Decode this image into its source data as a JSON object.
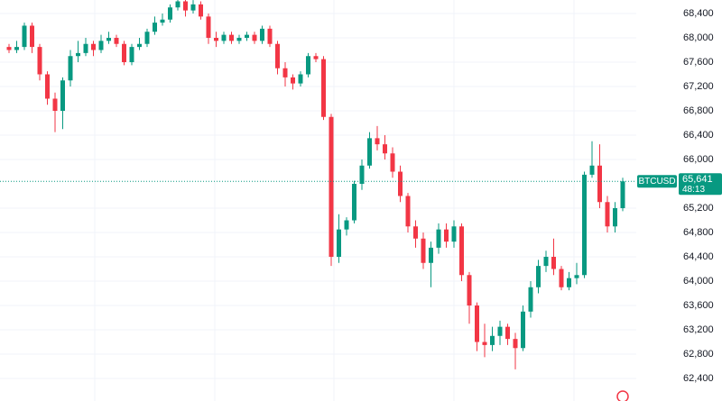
{
  "chart_data": {
    "type": "candlestick",
    "symbol": "BTCUSD",
    "last_price": {
      "value": 65641,
      "label": "65,641"
    },
    "countdown": "48:13",
    "up_color": "#089981",
    "down_color": "#f23645",
    "grid": true,
    "ylim": [
      62030,
      68622
    ],
    "yticks": [
      {
        "value": 68400,
        "label": "68,400"
      },
      {
        "value": 68000,
        "label": "68,000"
      },
      {
        "value": 67600,
        "label": "67,600"
      },
      {
        "value": 67200,
        "label": "67,200"
      },
      {
        "value": 66800,
        "label": "66,800"
      },
      {
        "value": 66400,
        "label": "66,400"
      },
      {
        "value": 66000,
        "label": "66,000"
      },
      {
        "value": 65200,
        "label": "65,200"
      },
      {
        "value": 64800,
        "label": "64,800"
      },
      {
        "value": 64400,
        "label": "64,400"
      },
      {
        "value": 64000,
        "label": "64,000"
      },
      {
        "value": 63600,
        "label": "63,600"
      },
      {
        "value": 63200,
        "label": "63,200"
      },
      {
        "value": 62800,
        "label": "62,800"
      },
      {
        "value": 62400,
        "label": "62,400"
      }
    ],
    "open": [
      67850,
      67800,
      67850,
      68200,
      67850,
      67400,
      67000,
      66800,
      67300,
      67700,
      67750,
      67900,
      67800,
      67950,
      68000,
      67900,
      67600,
      67850,
      67900,
      68100,
      68250,
      68300,
      68500,
      68600,
      68450,
      68550,
      68350,
      68000,
      67950,
      68050,
      67950,
      68000,
      68050,
      67950,
      68150,
      67900,
      67500,
      67350,
      67250,
      67400,
      67700,
      67650,
      66700,
      64400,
      64850,
      65000,
      65600,
      65900,
      66350,
      66250,
      66100,
      65800,
      65400,
      64900,
      64700,
      64300,
      64550,
      64850,
      64650,
      64900,
      64100,
      63600,
      63000,
      62950,
      63100,
      63250,
      63050,
      62900,
      63500,
      63900,
      64250,
      64400,
      64200,
      63900,
      64050,
      64100,
      65750,
      65900,
      65300,
      64900,
      65200
    ],
    "high": [
      67900,
      67950,
      68250,
      68250,
      67900,
      67450,
      67100,
      67350,
      67800,
      67950,
      68000,
      67950,
      68050,
      68100,
      68050,
      67950,
      67900,
      68000,
      68150,
      68350,
      68400,
      68550,
      68650,
      68650,
      68620,
      68600,
      68400,
      68100,
      68100,
      68100,
      68050,
      68100,
      68100,
      68200,
      68200,
      67950,
      67600,
      67400,
      67450,
      67750,
      67750,
      67700,
      66750,
      65100,
      65050,
      65650,
      66000,
      66450,
      66550,
      66400,
      66200,
      65900,
      65450,
      65000,
      64800,
      64650,
      64950,
      64950,
      65000,
      64950,
      64150,
      63650,
      63300,
      63250,
      63350,
      63300,
      63150,
      63600,
      64000,
      64350,
      64500,
      64700,
      64250,
      64150,
      64300,
      65800,
      66300,
      66250,
      65400,
      65300,
      65700
    ],
    "low": [
      67750,
      67750,
      67800,
      67750,
      67300,
      66900,
      66450,
      66500,
      67200,
      67600,
      67700,
      67700,
      67750,
      67900,
      67850,
      67550,
      67550,
      67800,
      67850,
      68050,
      68200,
      68250,
      68450,
      68350,
      68400,
      68300,
      67900,
      67850,
      67900,
      67900,
      67900,
      67950,
      67900,
      67900,
      67850,
      67400,
      67200,
      67150,
      67200,
      67350,
      67600,
      66650,
      64250,
      64300,
      64750,
      64950,
      65500,
      65850,
      66150,
      66000,
      65700,
      65300,
      64800,
      64550,
      64200,
      63900,
      64450,
      64550,
      64550,
      64000,
      63300,
      62850,
      62750,
      62850,
      62950,
      62950,
      62550,
      62850,
      63400,
      63800,
      64150,
      64100,
      63850,
      63850,
      63950,
      64050,
      65700,
      65200,
      64800,
      64800,
      65150
    ],
    "close": [
      67800,
      67850,
      68200,
      67850,
      67400,
      67000,
      66800,
      67300,
      67700,
      67750,
      67900,
      67800,
      67950,
      68000,
      67900,
      67600,
      67850,
      67900,
      68100,
      68250,
      68300,
      68500,
      68600,
      68450,
      68550,
      68350,
      68000,
      67950,
      68050,
      67950,
      68000,
      68050,
      67950,
      68150,
      67900,
      67500,
      67350,
      67250,
      67400,
      67700,
      67650,
      66700,
      64400,
      64850,
      65000,
      65600,
      65900,
      66350,
      66250,
      66100,
      65800,
      65400,
      64900,
      64700,
      64300,
      64550,
      64850,
      64650,
      64900,
      64100,
      63600,
      63000,
      62950,
      63100,
      63250,
      63050,
      62900,
      63500,
      63900,
      64250,
      64400,
      64200,
      63900,
      64050,
      64100,
      65750,
      65900,
      65300,
      64900,
      65200,
      65641
    ]
  }
}
